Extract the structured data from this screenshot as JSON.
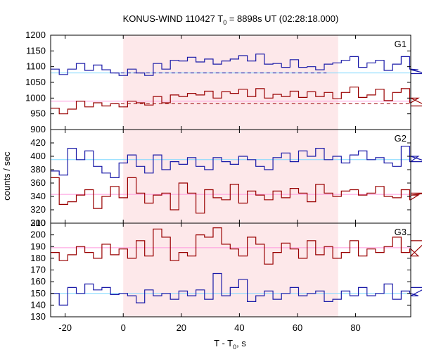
{
  "chart_data": {
    "type": "line",
    "title_prefix": "KONUS-WIND 110427 T",
    "title_sub": "0",
    "title_suffix": " = 8898s UT (02:28:18.000)",
    "xlabel_prefix": "T - T",
    "xlabel_sub": "0",
    "xlabel_suffix": ", s",
    "ylabel": "counts / sec",
    "xlim": [
      -25,
      99
    ],
    "xticks": [
      -20,
      0,
      20,
      40,
      60,
      80
    ],
    "highlight": [
      0,
      74
    ],
    "colors": {
      "blue": "#1a1aa8",
      "red": "#990000",
      "bg_blue": "#7fd8ff",
      "bg_red": "#ff99dd",
      "shade": "#fde8ea"
    },
    "panels": [
      {
        "name": "G1",
        "ylim": [
          900,
          1200
        ],
        "yticks": [
          900,
          950,
          1000,
          1050,
          1100,
          1150,
          1200
        ],
        "bin_start": -25,
        "bin_width": 2.944,
        "blue": [
          1092,
          1075,
          1092,
          1110,
          1088,
          1105,
          1090,
          1080,
          1072,
          1092,
          1080,
          1072,
          1110,
          1092,
          1120,
          1118,
          1130,
          1115,
          1124,
          1108,
          1118,
          1124,
          1135,
          1118,
          1140,
          1108,
          1110,
          1098,
          1122,
          1098,
          1100,
          1090,
          1108,
          1112,
          1120,
          1132,
          1098,
          1112,
          1120,
          1088,
          1108,
          1132,
          1092,
          1090,
          1078
        ],
        "red": [
          968,
          950,
          965,
          990,
          972,
          985,
          975,
          982,
          972,
          990,
          985,
          978,
          1005,
          985,
          1010,
          1005,
          1015,
          1010,
          1022,
          1000,
          1020,
          1015,
          1028,
          1005,
          1030,
          1000,
          1012,
          1005,
          1022,
          1002,
          1020,
          1005,
          1018,
          998,
          1018,
          1035,
          1002,
          1010,
          1028,
          992,
          1018,
          1030,
          985,
          1000,
          975
        ],
        "bg_level": 1080,
        "bg_level_red": 990
      },
      {
        "name": "G2",
        "ylim": [
          300,
          440
        ],
        "yticks": [
          300,
          320,
          340,
          360,
          380,
          400,
          420
        ],
        "bin_start": -25,
        "bin_width": 2.944,
        "blue": [
          378,
          372,
          412,
          395,
          408,
          385,
          375,
          368,
          390,
          402,
          385,
          375,
          402,
          380,
          392,
          388,
          398,
          385,
          380,
          398,
          392,
          388,
          400,
          395,
          385,
          380,
          398,
          405,
          392,
          408,
          400,
          412,
          395,
          400,
          390,
          402,
          408,
          395,
          398,
          390,
          385,
          415,
          392,
          400,
          392
        ],
        "red": [
          368,
          328,
          332,
          342,
          350,
          322,
          340,
          355,
          338,
          368,
          345,
          330,
          342,
          345,
          320,
          360,
          345,
          315,
          350,
          338,
          335,
          358,
          330,
          348,
          342,
          335,
          348,
          338,
          352,
          345,
          332,
          358,
          345,
          340,
          348,
          350,
          342,
          345,
          355,
          340,
          338,
          350,
          335,
          342,
          345
        ],
        "bg_level": 395,
        "bg_level_red": 343
      },
      {
        "name": "G3",
        "ylim": [
          130,
          210
        ],
        "yticks": [
          130,
          140,
          150,
          160,
          170,
          180,
          190,
          200,
          210
        ],
        "bin_start": -25,
        "bin_width": 2.944,
        "blue": [
          150,
          140,
          155,
          150,
          158,
          153,
          155,
          149,
          150,
          148,
          142,
          153,
          148,
          150,
          145,
          152,
          148,
          153,
          145,
          167,
          148,
          155,
          162,
          143,
          148,
          152,
          145,
          150,
          155,
          148,
          150,
          152,
          143,
          145,
          152,
          148,
          155,
          148,
          150,
          158,
          145,
          152,
          150,
          148,
          155
        ],
        "red": [
          185,
          178,
          183,
          190,
          185,
          180,
          192,
          183,
          188,
          180,
          195,
          182,
          205,
          198,
          178,
          185,
          182,
          200,
          198,
          206,
          192,
          188,
          182,
          198,
          192,
          175,
          185,
          193,
          188,
          180,
          195,
          183,
          190,
          180,
          185,
          195,
          182,
          188,
          185,
          190,
          198,
          185,
          188,
          182,
          195
        ],
        "bg_level": 150,
        "bg_level_red": 189
      }
    ]
  }
}
